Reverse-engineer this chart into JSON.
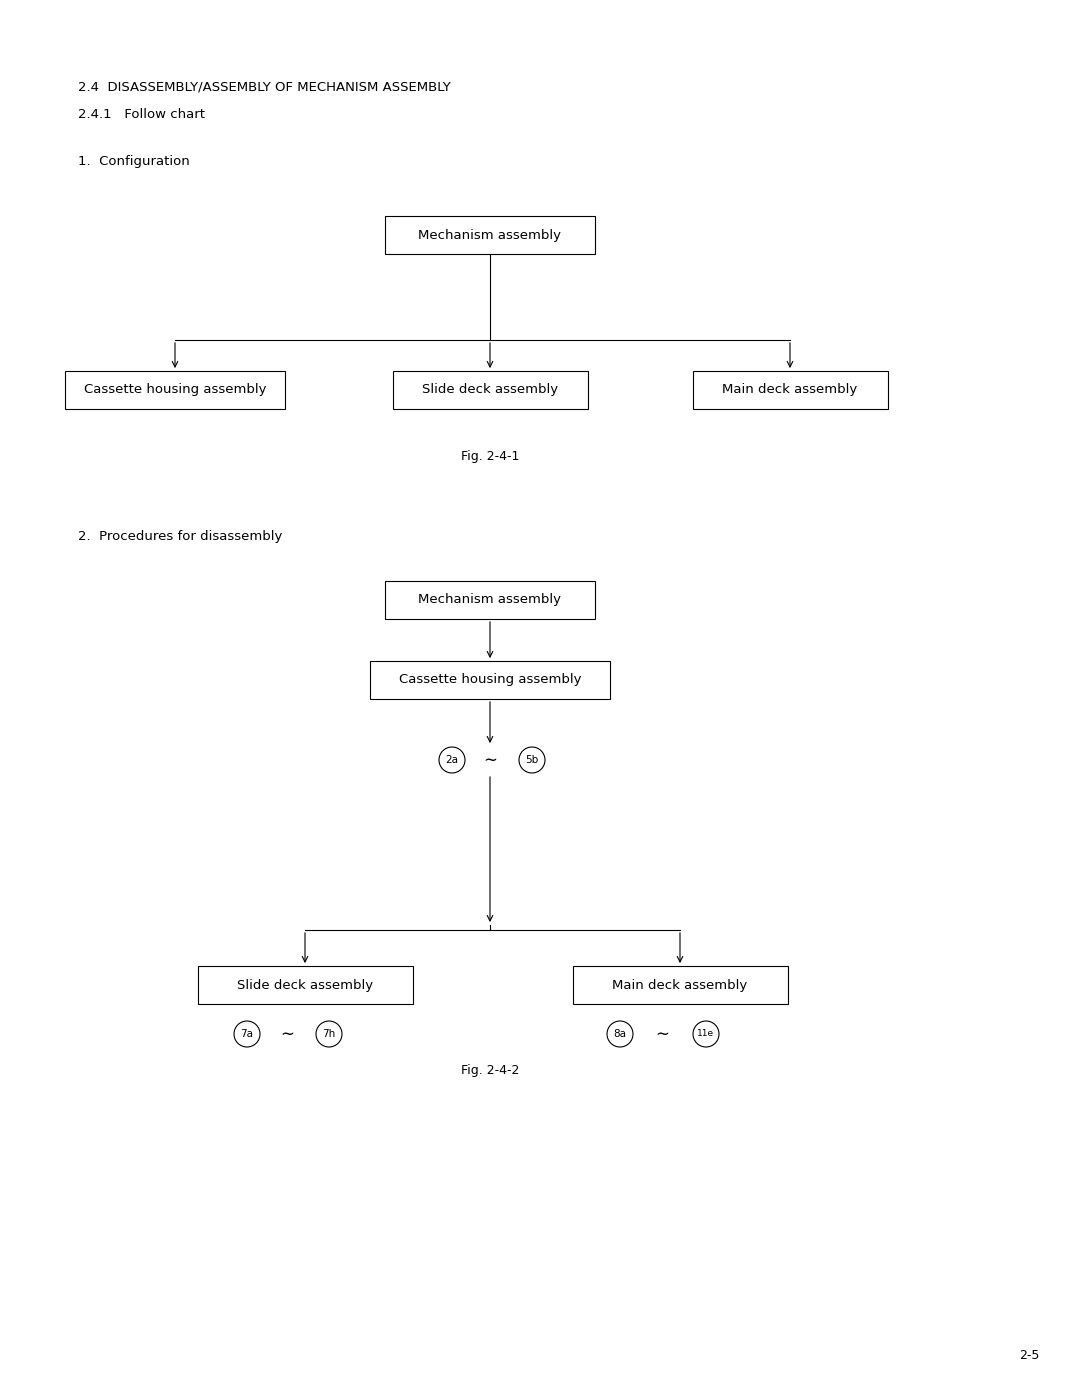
{
  "title1": "2.4  DISASSEMBLY/ASSEMBLY OF MECHANISM ASSEMBLY",
  "title2": "2.4.1   Follow chart",
  "section1": "1.  Configuration",
  "section2": "2.  Procedures for disassembly",
  "fig1_label": "Fig. 2-4-1",
  "fig2_label": "Fig. 2-4-2",
  "page_number": "2-5",
  "bg_color": "#ffffff",
  "box_color": "#000000",
  "box_fill": "#ffffff",
  "text_color": "#000000",
  "font_size_title": 9.5,
  "font_size_section": 9.5,
  "font_size_box": 9.5,
  "font_size_fig": 9.0,
  "font_size_page": 9.0,
  "font_size_circ": 7.5
}
